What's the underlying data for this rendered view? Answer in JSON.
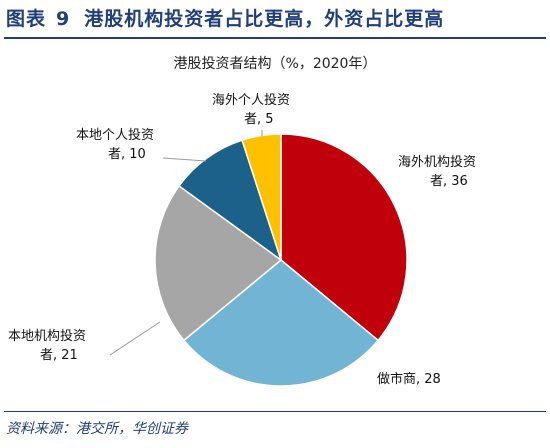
{
  "figure": {
    "label": "图表",
    "number": "9",
    "title": "港股机构投资者占比更高，外资占比更高"
  },
  "source": "资料来源：港交所，华创证券",
  "chart_data": {
    "type": "pie",
    "title": "港股投资者结构（%，2020年）",
    "slices": [
      {
        "name": "海外机构投资者",
        "value": 36,
        "color": "#c0000b"
      },
      {
        "name": "做市商",
        "value": 28,
        "color": "#72b4d3"
      },
      {
        "name": "本地机构投资者",
        "value": 21,
        "color": "#a6a6a6"
      },
      {
        "name": "本地个人投资者",
        "value": 10,
        "color": "#1b6189"
      },
      {
        "name": "海外个人投资者",
        "value": 5,
        "color": "#ffc000"
      }
    ]
  }
}
